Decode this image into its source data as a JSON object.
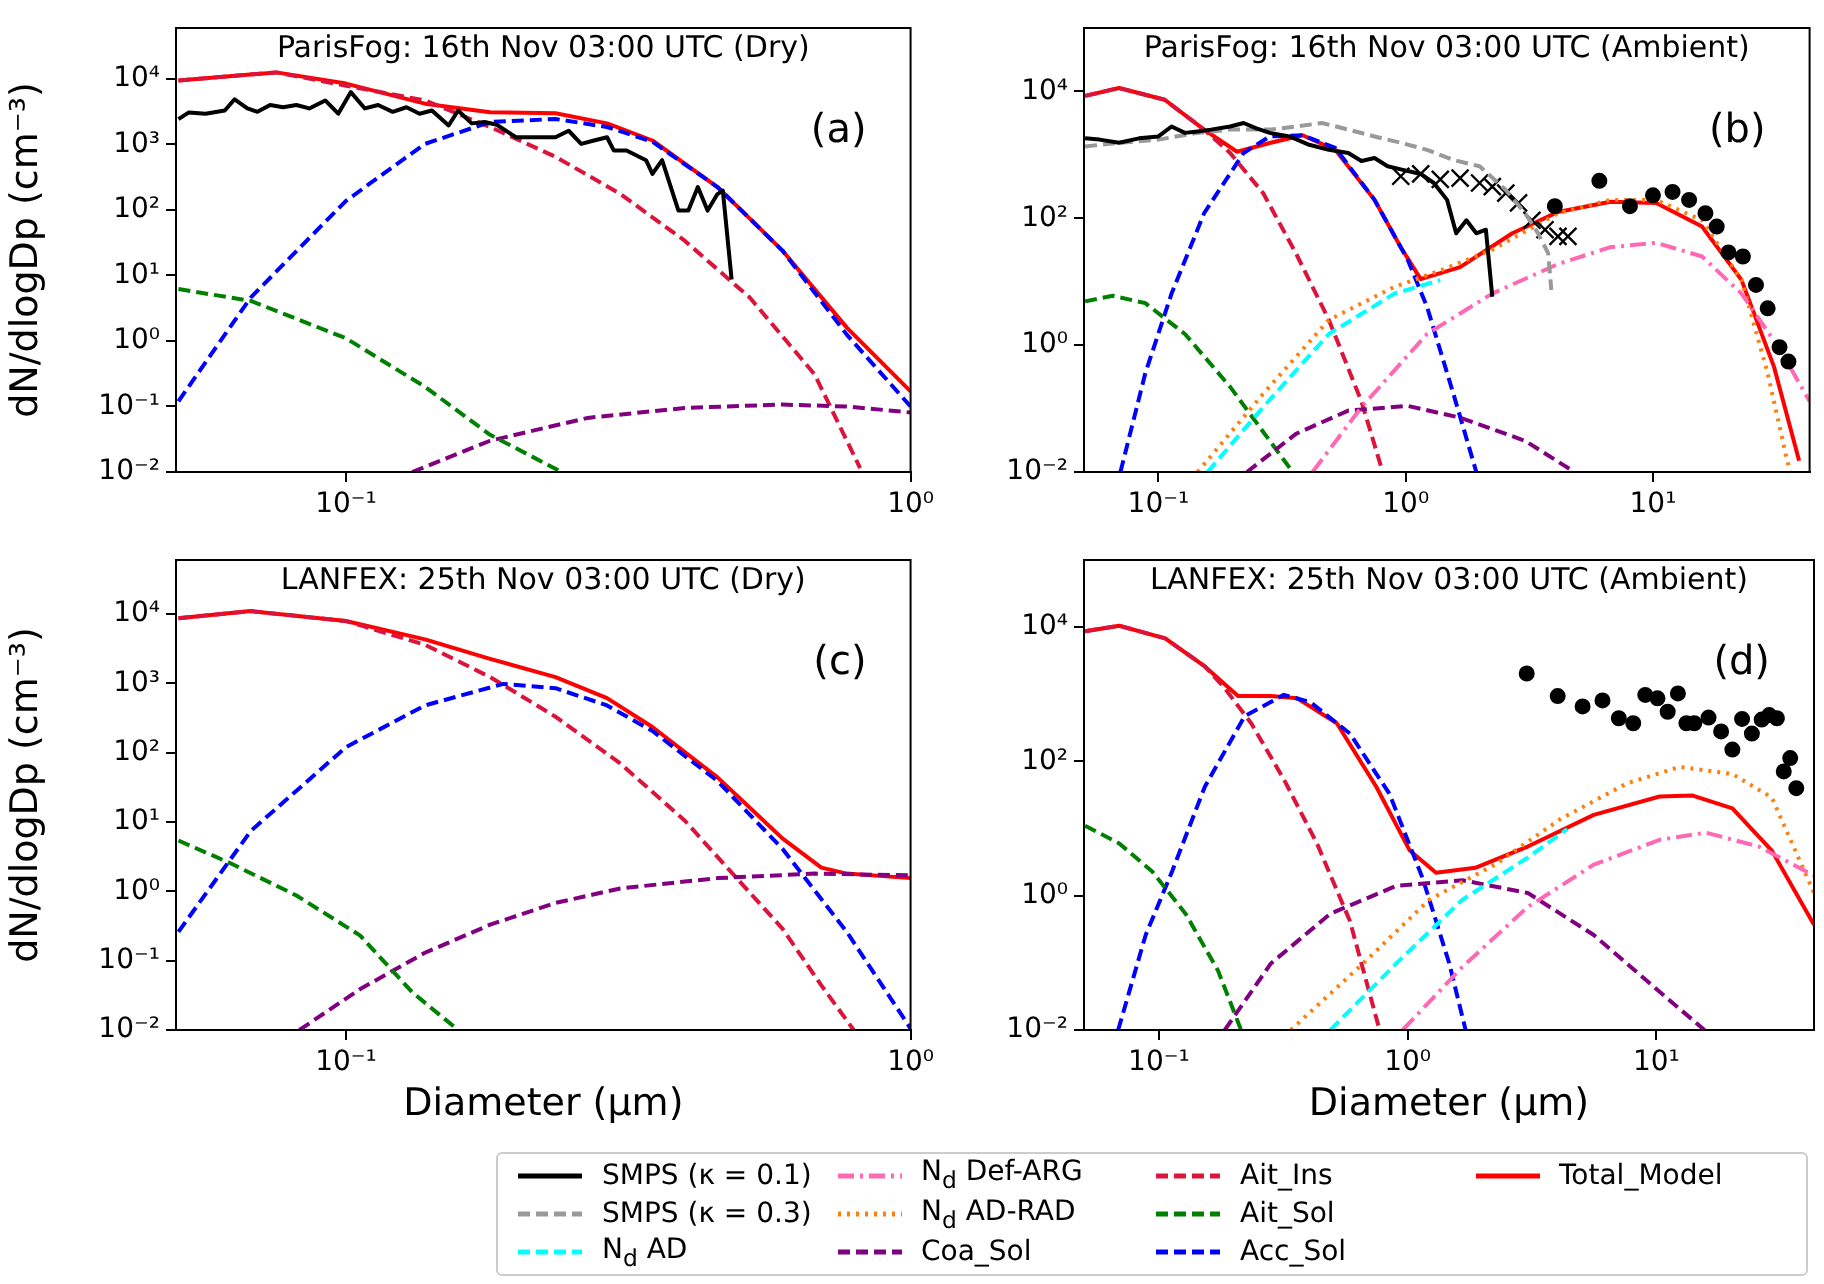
{
  "chart_data": [
    {
      "type": "line",
      "title": "ParisFog: 16th Nov 03:00 UTC (Dry)",
      "ylabel": "dN/dlogDp (cm⁻³)",
      "annotations": [
        "(a)"
      ],
      "log": "xy",
      "grid": false,
      "legend": false,
      "xlim": [
        0.05,
        1
      ],
      "xticks": [
        {
          "value": 0.1,
          "label": "10⁻¹"
        },
        {
          "value": 1,
          "label": "10⁰"
        }
      ],
      "ylim": [
        0.01,
        60000
      ],
      "yticks": [
        {
          "value": 0.01,
          "label": "10⁻²"
        },
        {
          "value": 0.1,
          "label": "10⁻¹"
        },
        {
          "value": 1,
          "label": "10⁰"
        },
        {
          "value": 10,
          "label": "10¹"
        },
        {
          "value": 100,
          "label": "10²"
        },
        {
          "value": 1000,
          "label": "10³"
        },
        {
          "value": 10000,
          "label": "10⁴"
        }
      ],
      "series": [
        {
          "color": "#000000",
          "type": "line",
          "line_style": "solid",
          "marker": "none",
          "x": [
            0.0505,
            0.0527,
            0.0564,
            0.061,
            0.0635,
            0.0669,
            0.0697,
            0.0734,
            0.0774,
            0.0817,
            0.0861,
            0.0919,
            0.0969,
            0.102,
            0.108,
            0.114,
            0.121,
            0.128,
            0.135,
            0.142,
            0.152,
            0.158,
            0.167,
            0.176,
            0.185,
            0.2,
            0.217,
            0.235,
            0.248,
            0.261,
            0.275,
            0.29,
            0.298,
            0.314,
            0.34,
            0.349,
            0.363,
            0.388,
            0.404,
            0.42,
            0.437,
            0.455,
            0.465,
            0.482
          ],
          "values": [
            2440,
            3090,
            2950,
            3300,
            4900,
            3550,
            3150,
            4000,
            3700,
            4000,
            3550,
            4700,
            2950,
            6300,
            3550,
            4000,
            3150,
            3700,
            2950,
            3300,
            1950,
            3300,
            2100,
            2200,
            2000,
            1290,
            1290,
            1290,
            1620,
            1020,
            1150,
            1290,
            810,
            810,
            575,
            355,
            575,
            98,
            98,
            224,
            98,
            175,
            198,
            8.7
          ]
        },
        {
          "color": "#008000",
          "type": "line",
          "line_style": "dashed",
          "marker": "none",
          "x": [
            0.0505,
            0.0678,
            0.1,
            0.138,
            0.18,
            0.241
          ],
          "values": [
            6.2,
            4.1,
            1.1,
            0.2,
            0.037,
            0.01
          ]
        },
        {
          "color": "#0000ff",
          "type": "line",
          "line_style": "dashed",
          "marker": "none",
          "x": [
            0.0505,
            0.0678,
            0.1,
            0.138,
            0.18,
            0.235,
            0.29,
            0.349,
            0.455,
            0.593,
            0.771,
            1
          ],
          "values": [
            0.12,
            4.6,
            138,
            1020,
            2200,
            2450,
            1850,
            1100,
            224,
            24,
            1.25,
            0.1
          ]
        },
        {
          "color": "#800080",
          "type": "line",
          "line_style": "dashed",
          "marker": "none",
          "x": [
            0.131,
            0.18,
            0.268,
            0.398,
            0.593,
            0.771,
            1
          ],
          "values": [
            0.01,
            0.03,
            0.067,
            0.095,
            0.107,
            0.1,
            0.081
          ]
        },
        {
          "color": "#dc143c",
          "type": "line",
          "line_style": "dashed",
          "marker": "none",
          "x": [
            0.0505,
            0.0753,
            0.1,
            0.138,
            0.18,
            0.235,
            0.306,
            0.398,
            0.519,
            0.676,
            0.814
          ],
          "values": [
            9500,
            12600,
            7900,
            4700,
            1850,
            650,
            176,
            34,
            4.6,
            0.31,
            0.0115
          ]
        },
        {
          "color": "#ff0000",
          "type": "line",
          "line_style": "solid",
          "marker": "none",
          "x": [
            0.0505,
            0.0753,
            0.1,
            0.138,
            0.18,
            0.235,
            0.29,
            0.349,
            0.455,
            0.593,
            0.771,
            1
          ],
          "values": [
            9500,
            12600,
            8500,
            4200,
            3100,
            3000,
            2100,
            1150,
            224,
            24,
            1.6,
            0.17
          ]
        }
      ]
    },
    {
      "type": "line",
      "title": "ParisFog: 16th Nov 03:00 UTC (Ambient)",
      "annotations": [
        "(b)"
      ],
      "log": "xy",
      "grid": false,
      "legend": "bottom",
      "xlim": [
        0.05,
        43
      ],
      "xticks": [
        {
          "value": 0.1,
          "label": "10⁻¹"
        },
        {
          "value": 1,
          "label": "10⁰"
        },
        {
          "value": 10,
          "label": "10¹"
        }
      ],
      "ylim": [
        0.01,
        100000
      ],
      "yticks": [
        {
          "value": 0.01,
          "label": "10⁻²"
        },
        {
          "value": 1,
          "label": "10⁰"
        },
        {
          "value": 100,
          "label": "10²"
        },
        {
          "value": 10000,
          "label": "10⁴"
        }
      ],
      "series": [
        {
          "name": "SMPS (κ = 0.1)",
          "color": "#000000",
          "type": "line",
          "line_style": "solid",
          "marker": "none",
          "x": [
            0.0505,
            0.0578,
            0.0693,
            0.0834,
            0.1,
            0.113,
            0.128,
            0.144,
            0.163,
            0.195,
            0.221,
            0.249,
            0.282,
            0.339,
            0.407,
            0.489,
            0.586,
            0.662,
            0.748,
            0.845,
            0.955,
            1.15,
            1.3,
            1.47,
            1.6,
            1.76,
            1.93,
            2.11,
            2.24
          ],
          "values": [
            1820,
            1740,
            1550,
            1820,
            1950,
            2800,
            2220,
            2340,
            2500,
            2800,
            3180,
            2620,
            2220,
            1950,
            1440,
            1200,
            1070,
            800,
            890,
            660,
            590,
            500,
            360,
            195,
            58,
            93,
            58,
            66,
            5.8
          ]
        },
        {
          "name": "SMPS (κ = 0.3)",
          "color": "#999999",
          "type": "line",
          "line_style": "dashed",
          "marker": "none",
          "x": [
            0.0505,
            0.0693,
            0.1,
            0.144,
            0.195,
            0.282,
            0.36,
            0.459,
            0.586,
            0.748,
            0.955,
            1.22,
            1.56,
            1.99,
            2.54,
            3.04,
            3.43,
            3.77,
            3.88
          ],
          "values": [
            1360,
            1550,
            1740,
            2220,
            2500,
            2500,
            2800,
            3180,
            2500,
            1950,
            1550,
            1200,
            830,
            660,
            280,
            120,
            58,
            28,
            7.4
          ]
        },
        {
          "color": "#000000",
          "type": "scatter",
          "marker": "cross",
          "x": [
            0.955,
            1.15,
            1.38,
            1.66,
            1.99,
            2.24,
            2.54,
            2.86,
            3.24,
            3.66,
            4.13,
            4.53
          ],
          "values": [
            460,
            500,
            410,
            430,
            360,
            315,
            250,
            175,
            93,
            66,
            52,
            52
          ]
        },
        {
          "color": "#000000",
          "type": "scatter",
          "marker": "circle",
          "x": [
            4.01,
            6.07,
            8.07,
            10,
            12,
            14,
            16.3,
            18.1,
            20.2,
            23.1,
            26.1,
            29.1,
            32.5,
            35.3
          ],
          "values": [
            155,
            390,
            155,
            230,
            260,
            195,
            120,
            74,
            29,
            25,
            8.9,
            3.8,
            0.93,
            0.55
          ]
        },
        {
          "name": "N$_{d}$ AD",
          "color": "#00ffff",
          "type": "line",
          "line_style": "dashed",
          "marker": "none",
          "x": [
            0.158,
            0.265,
            0.489,
            0.9,
            1.38
          ],
          "values": [
            0.01,
            0.105,
            1.5,
            6.5,
            10.6
          ]
        },
        {
          "name": "N$_{d}$ Def-ARG",
          "color": "#ff69b4",
          "type": "line",
          "line_style": "dashdot",
          "marker": "none",
          "x": [
            0.42,
            0.662,
            1.22,
            2.24,
            4.13,
            6.73,
            10.3,
            15.8,
            22.8,
            32.8,
            43
          ],
          "values": [
            0.01,
            0.105,
            1.5,
            6.5,
            19,
            35,
            41,
            25,
            6.5,
            0.83,
            0.13
          ]
        },
        {
          "name": "N$_{d}$ AD-RAD",
          "color": "#ff7f0e",
          "type": "line",
          "line_style": "dotted",
          "marker": "none",
          "x": [
            0.144,
            0.265,
            0.489,
            0.9,
            1.38,
            2.24,
            4.13,
            6.73,
            10.3,
            15.8,
            22.8,
            29.1,
            34.9,
            36
          ],
          "values": [
            0.01,
            0.17,
            2.5,
            8.3,
            15,
            32,
            120,
            195,
            195,
            93,
            10.7,
            0.36,
            0.015,
            0.01
          ]
        },
        {
          "name": "Coa_Sol",
          "color": "#800080",
          "type": "line",
          "line_style": "dashed",
          "marker": "none",
          "x": [
            0.228,
            0.36,
            0.586,
            1.02,
            1.66,
            3.04,
            4.81
          ],
          "values": [
            0.01,
            0.04,
            0.093,
            0.11,
            0.072,
            0.031,
            0.01
          ]
        },
        {
          "name": "Ait_Ins",
          "color": "#dc143c",
          "type": "line",
          "line_style": "dashed",
          "marker": "none",
          "x": [
            0.0505,
            0.0693,
            0.106,
            0.153,
            0.195,
            0.265,
            0.36,
            0.489,
            0.662,
            0.796
          ],
          "values": [
            8500,
            11300,
            7400,
            2500,
            1070,
            250,
            28,
            2.5,
            0.13,
            0.012
          ]
        },
        {
          "name": "Ait_Sol",
          "color": "#008000",
          "type": "line",
          "line_style": "dashed",
          "marker": "none",
          "x": [
            0.0505,
            0.0653,
            0.0885,
            0.128,
            0.195,
            0.282,
            0.349
          ],
          "values": [
            4.9,
            6,
            4.6,
            1.5,
            0.22,
            0.031,
            0.01
          ]
        },
        {
          "name": "Acc_Sol",
          "color": "#0000ff",
          "type": "line",
          "line_style": "dashed",
          "marker": "none",
          "x": [
            0.0702,
            0.0885,
            0.113,
            0.153,
            0.221,
            0.282,
            0.383,
            0.519,
            0.748,
            1.02,
            1.22,
            1.56,
            1.93
          ],
          "values": [
            0.01,
            0.36,
            6.5,
            120,
            1070,
            1950,
            2040,
            1290,
            195,
            22,
            4,
            0.17,
            0.01
          ]
        },
        {
          "name": "Total_Model",
          "color": "#ff0000",
          "type": "line",
          "line_style": "solid",
          "marker": "none",
          "x": [
            0.0505,
            0.0693,
            0.106,
            0.153,
            0.208,
            0.282,
            0.383,
            0.519,
            0.748,
            0.955,
            1.15,
            1.66,
            2.7,
            4.13,
            6.73,
            10.3,
            15.8,
            22.8,
            30.9,
            39
          ],
          "values": [
            8500,
            11300,
            7400,
            2500,
            1120,
            1540,
            2040,
            1200,
            195,
            35,
            11,
            17,
            58,
            126,
            182,
            174,
            74,
            10.7,
            0.45,
            0.015
          ]
        }
      ]
    },
    {
      "type": "line",
      "title": "LANFEX: 25th Nov 03:00 UTC (Dry)",
      "xlabel": "Diameter (µm)",
      "ylabel": "dN/dlogDp (cm⁻³)",
      "annotations": [
        "(c)"
      ],
      "log": "xy",
      "grid": false,
      "legend": false,
      "xlim": [
        0.05,
        1
      ],
      "xticks": [
        {
          "value": 0.1,
          "label": "10⁻¹"
        },
        {
          "value": 1,
          "label": "10⁰"
        }
      ],
      "ylim": [
        0.01,
        60000
      ],
      "yticks": [
        {
          "value": 0.01,
          "label": "10⁻²"
        },
        {
          "value": 0.1,
          "label": "10⁻¹"
        },
        {
          "value": 1,
          "label": "10⁰"
        },
        {
          "value": 10,
          "label": "10¹"
        },
        {
          "value": 100,
          "label": "10²"
        },
        {
          "value": 1000,
          "label": "10³"
        },
        {
          "value": 10000,
          "label": "10⁴"
        }
      ],
      "series": [
        {
          "color": "#008000",
          "type": "line",
          "line_style": "dashed",
          "marker": "none",
          "x": [
            0.0505,
            0.0627,
            0.0817,
            0.106,
            0.131,
            0.158
          ],
          "values": [
            5.4,
            2.5,
            0.87,
            0.23,
            0.035,
            0.01
          ]
        },
        {
          "color": "#0000ff",
          "type": "line",
          "line_style": "dashed",
          "marker": "none",
          "x": [
            0.0505,
            0.0678,
            0.1,
            0.138,
            0.19,
            0.235,
            0.29,
            0.349,
            0.455,
            0.593,
            0.771,
            1
          ],
          "values": [
            0.26,
            7.4,
            120,
            480,
            980,
            850,
            480,
            205,
            39,
            4.1,
            0.26,
            0.0105
          ]
        },
        {
          "color": "#800080",
          "type": "line",
          "line_style": "dashed",
          "marker": "none",
          "x": [
            0.0827,
            0.106,
            0.138,
            0.18,
            0.235,
            0.306,
            0.455,
            0.676,
            1
          ],
          "values": [
            0.01,
            0.039,
            0.13,
            0.33,
            0.68,
            1.1,
            1.55,
            1.8,
            1.7
          ]
        },
        {
          "color": "#dc143c",
          "type": "line",
          "line_style": "dashed",
          "marker": "none",
          "x": [
            0.0505,
            0.0678,
            0.1,
            0.138,
            0.18,
            0.235,
            0.306,
            0.398,
            0.492,
            0.593,
            0.695,
            0.793
          ],
          "values": [
            8700,
            11000,
            7900,
            3600,
            1230,
            330,
            70,
            10.5,
            1.55,
            0.29,
            0.044,
            0.01
          ]
        },
        {
          "color": "#ff0000",
          "type": "line",
          "line_style": "solid",
          "marker": "none",
          "x": [
            0.0505,
            0.0678,
            0.1,
            0.138,
            0.18,
            0.235,
            0.29,
            0.349,
            0.455,
            0.593,
            0.695,
            0.771,
            1
          ],
          "values": [
            8700,
            11000,
            7900,
            4300,
            2250,
            1230,
            610,
            234,
            44,
            5.8,
            2.2,
            1.8,
            1.55
          ]
        }
      ]
    },
    {
      "type": "line",
      "title": "LANFEX: 25th Nov 03:00 UTC (Ambient)",
      "xlabel": "Diameter (µm)",
      "annotations": [
        "(d)"
      ],
      "log": "xy",
      "grid": false,
      "legend": false,
      "xlim": [
        0.05,
        43
      ],
      "xticks": [
        {
          "value": 0.1,
          "label": "10⁻¹"
        },
        {
          "value": 1,
          "label": "10⁰"
        },
        {
          "value": 10,
          "label": "10¹"
        }
      ],
      "ylim": [
        0.01,
        100000
      ],
      "yticks": [
        {
          "value": 0.01,
          "label": "10⁻²"
        },
        {
          "value": 1,
          "label": "10⁰"
        },
        {
          "value": 100,
          "label": "10²"
        },
        {
          "value": 10000,
          "label": "10⁴"
        }
      ],
      "series": [
        {
          "color": "#000000",
          "type": "scatter",
          "marker": "circle",
          "x": [
            3.01,
            4.01,
            5.05,
            6.07,
            7.06,
            8.07,
            9.02,
            10.1,
            11.1,
            12.2,
            13.2,
            14.2,
            16.2,
            18.2,
            20.2,
            22.1,
            24.2,
            26.5,
            28.4,
            30.5,
            32.5,
            34.5,
            36.5
          ],
          "values": [
            2040,
            940,
            660,
            810,
            440,
            370,
            980,
            870,
            550,
            1030,
            370,
            370,
            450,
            280,
            150,
            430,
            260,
            420,
            490,
            440,
            71,
            112,
            40
          ]
        },
        {
          "color": "#00ffff",
          "type": "line",
          "line_style": "dashed",
          "marker": "none",
          "x": [
            0.489,
            0.9,
            1.66,
            3.04,
            4.38
          ],
          "values": [
            0.01,
            0.098,
            0.87,
            3.7,
            9.8
          ]
        },
        {
          "color": "#ff69b4",
          "type": "line",
          "line_style": "dashdot",
          "marker": "none",
          "x": [
            0.955,
            1.66,
            3.04,
            5.6,
            10.3,
            15.8,
            25.8,
            43
          ],
          "values": [
            0.01,
            0.087,
            0.68,
            2.9,
            6.8,
            8.7,
            5.4,
            2
          ]
        },
        {
          "color": "#ff7f0e",
          "type": "line",
          "line_style": "dotted",
          "marker": "none",
          "x": [
            0.339,
            0.662,
            1.22,
            2.24,
            4.13,
            7.6,
            12.4,
            20.2,
            29.1,
            43
          ],
          "values": [
            0.01,
            0.098,
            0.87,
            2.9,
            14,
            47,
            83,
            65,
            29,
            1.1
          ]
        },
        {
          "color": "#800080",
          "type": "line",
          "line_style": "dashed",
          "marker": "none",
          "x": [
            0.184,
            0.282,
            0.489,
            0.9,
            1.66,
            3.04,
            5.6,
            10.3,
            15.6
          ],
          "values": [
            0.01,
            0.098,
            0.54,
            1.4,
            1.7,
            1.1,
            0.26,
            0.037,
            0.01
          ]
        },
        {
          "color": "#dc143c",
          "type": "line",
          "line_style": "dashed",
          "marker": "none",
          "x": [
            0.0505,
            0.0693,
            0.106,
            0.153,
            0.184,
            0.235,
            0.318,
            0.432,
            0.586,
            0.771
          ],
          "values": [
            8700,
            10500,
            6800,
            2600,
            1230,
            370,
            54,
            6,
            0.42,
            0.01
          ]
        },
        {
          "color": "#008000",
          "type": "line",
          "line_style": "dashed",
          "marker": "none",
          "x": [
            0.0505,
            0.0693,
            0.094,
            0.128,
            0.173,
            0.214
          ],
          "values": [
            11,
            6,
            2.3,
            0.54,
            0.076,
            0.01
          ]
        },
        {
          "color": "#0000ff",
          "type": "line",
          "line_style": "dashed",
          "marker": "none",
          "x": [
            0.0686,
            0.0885,
            0.113,
            0.153,
            0.221,
            0.318,
            0.407,
            0.586,
            0.845,
            1.15,
            1.47,
            1.71
          ],
          "values": [
            0.01,
            0.26,
            2.3,
            42,
            470,
            980,
            760,
            260,
            33,
            1.8,
            0.098,
            0.01
          ]
        },
        {
          "color": "#ff0000",
          "type": "line",
          "line_style": "solid",
          "marker": "none",
          "x": [
            0.0505,
            0.0693,
            0.106,
            0.153,
            0.208,
            0.282,
            0.36,
            0.519,
            0.748,
            1.02,
            1.3,
            1.87,
            3.04,
            5.6,
            10.3,
            14,
            20.2,
            29.1,
            43
          ],
          "values": [
            8700,
            10500,
            6800,
            2600,
            940,
            940,
            870,
            370,
            42,
            4.7,
            2.2,
            2.6,
            5.4,
            16,
            30,
            31,
            20,
            4.7,
            0.37
          ]
        }
      ]
    }
  ]
}
